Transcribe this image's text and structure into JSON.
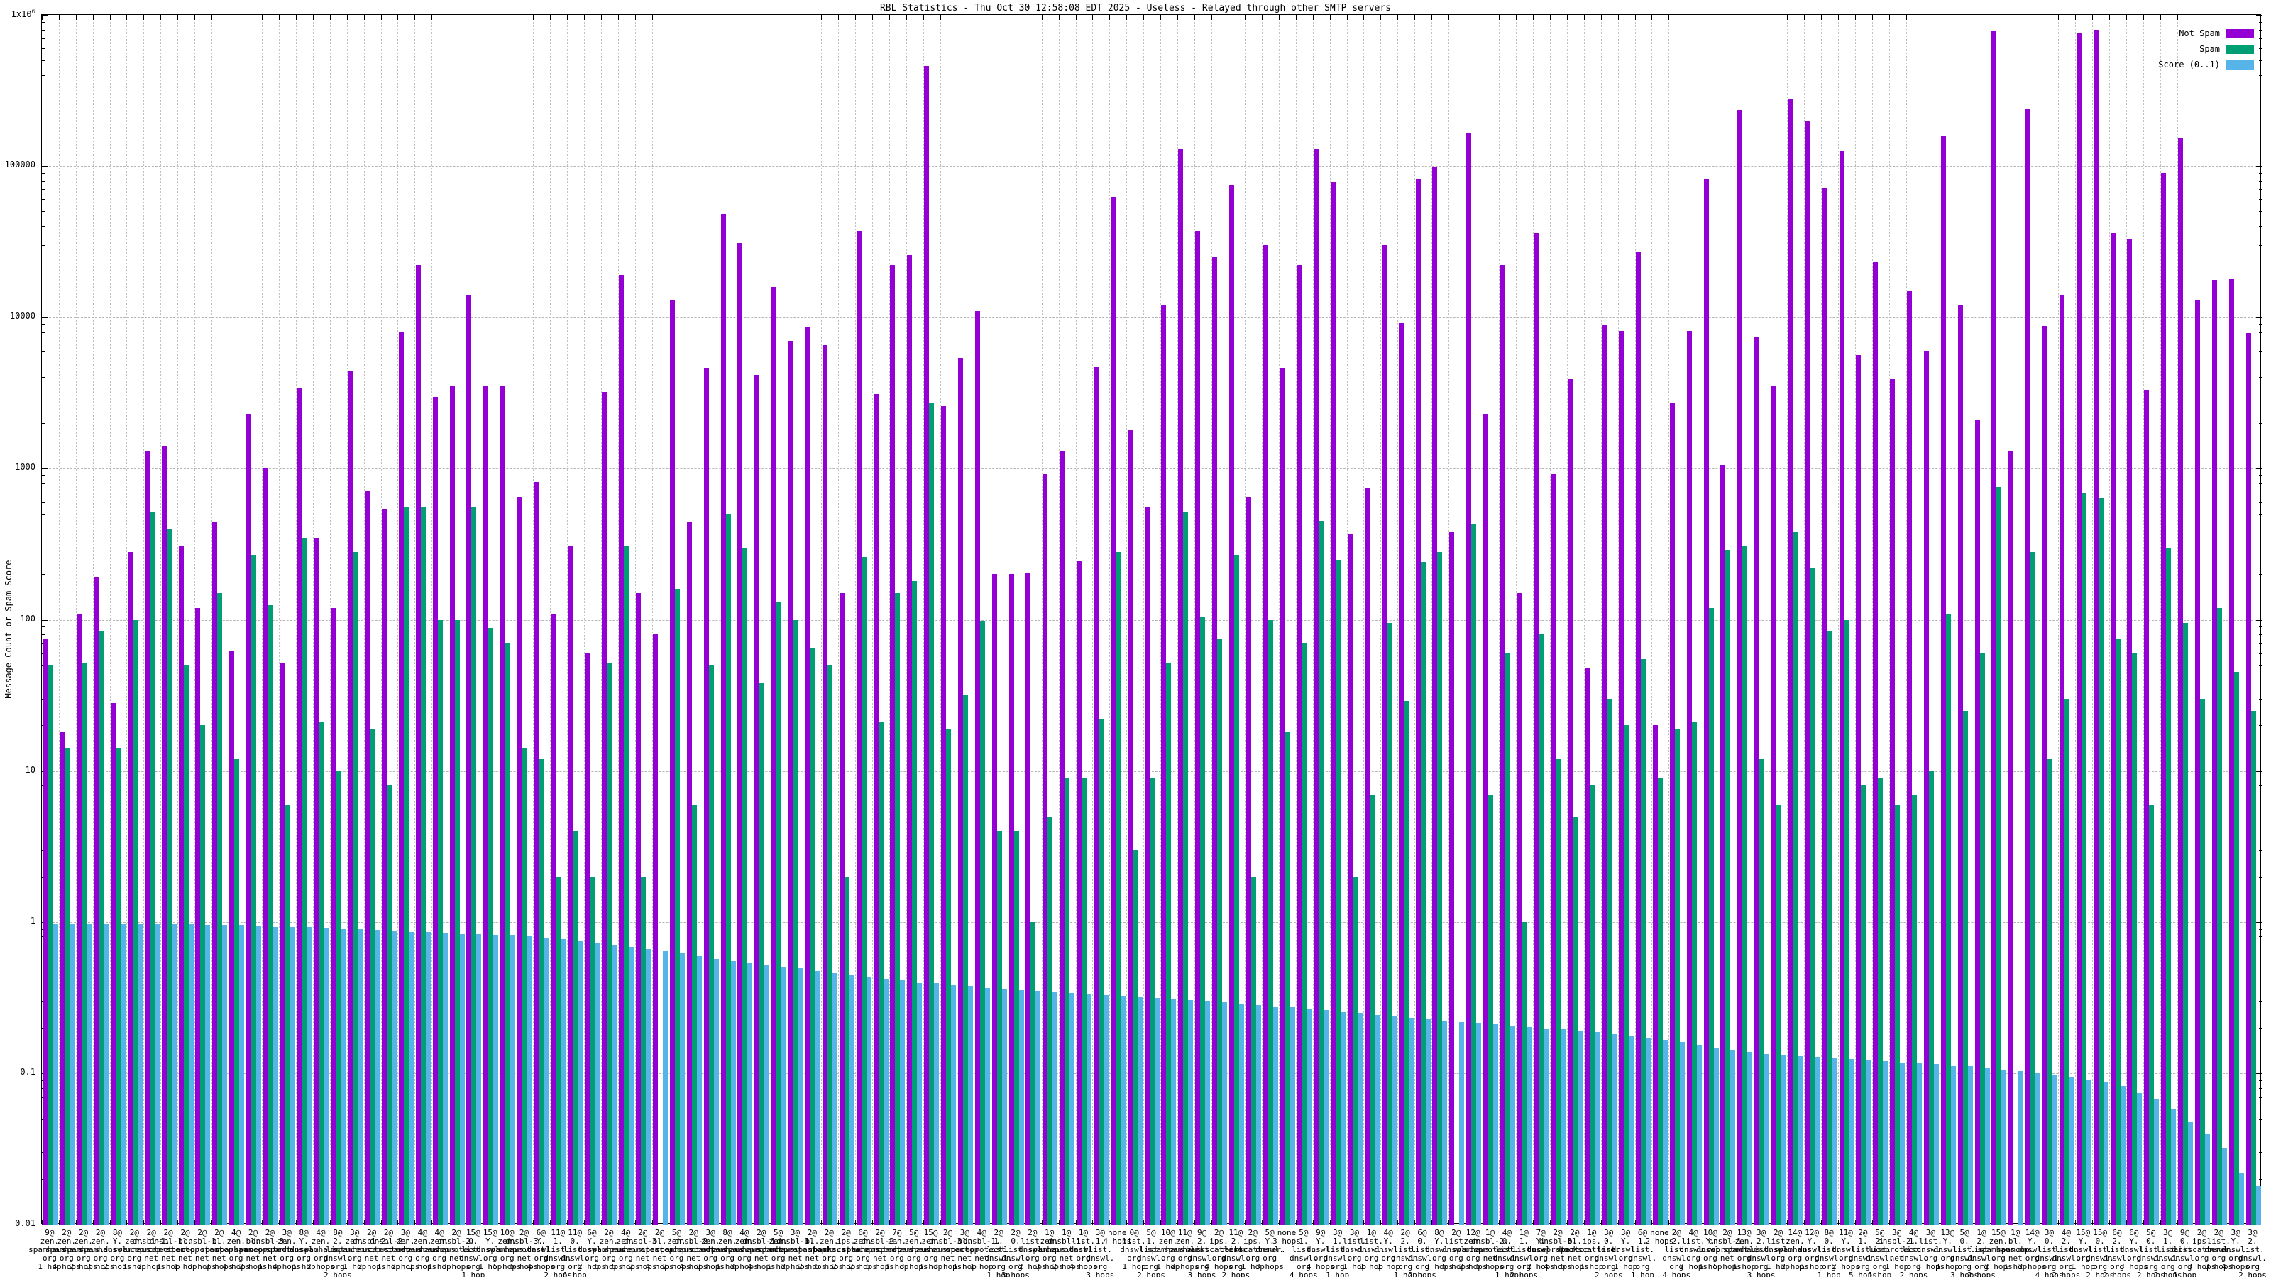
{
  "title": "RBL Statistics - Thu Oct 30 12:58:08 EDT 2025 - Useless - Relayed through other SMTP servers",
  "axes": {
    "y_label": "Message Count or Spam Score",
    "y_scale": "log",
    "y_ticks": [
      "1x10^6",
      "100000",
      "10000",
      "1000",
      "100",
      "10",
      "1",
      "0.1",
      "0.01"
    ],
    "y_min": 0.01,
    "y_max": 1000000
  },
  "legend": {
    "position": "top-right",
    "entries": [
      {
        "label": "Not Spam",
        "color": "#9400D3"
      },
      {
        "label": "Spam",
        "color": "#009E73"
      },
      {
        "label": "Score (0..1)",
        "color": "#56B4E9"
      }
    ]
  },
  "chart_data": {
    "type": "bar",
    "title": "RBL Statistics - Thu Oct 30 12:58:08 EDT 2025 - Useless - Relayed through other SMTP servers",
    "xlabel": "",
    "ylabel": "Message Count or Spam Score",
    "y_scale": "log",
    "ylim": [
      0.01,
      1000000
    ],
    "grid": true,
    "legend_position": "top-right",
    "categories": [
      "9@zen.spamhaus.org 1 hop",
      "2@zen.spamhaus.org 4 hops",
      "2@zen.spamhaus.org 2 hops",
      "2@zen.spamhaus.org 3 hops",
      "8@Y.dnswl.org 2 hops",
      "2@zen.spamhaus.org 1 hop",
      "2@dnsbl-1.uceprotect.net 2 hops",
      "2@dnsbl-1.uceprotect.net 1 hop",
      "2@bl.spamcop.net 1 hop",
      "2@dnsbl-1.uceprotect.net 3 hops",
      "2@bl.spamcop.net 3 hops",
      "4@zen.spamhaus.org 4 hops",
      "2@bl.spamcop.net 2 hops",
      "2@dnsbl-3.uceprotect.net 1 hop",
      "3@zen.spamhaus.org 4 hops",
      "8@Y.dnswl.org 1 hop",
      "4@zen.spamhaus.org 2 hops",
      "8@2.list.dnswl.org 2 hops",
      "3@zen.spamhaus.org 1 hop",
      "2@dnsbl-2.uceprotect.net 2 hops",
      "2@dnsbl-2.uceprotect.net 1 hop",
      "3@zen.spamhaus.org 2 hops",
      "4@zen.spamhaus.org 3 hops",
      "4@zen.spamhaus.org 1 hop",
      "2@dnsbl-2.uceprotect.net 3 hops",
      "15@0.list.dnswl.org 1 hop",
      "15@Y.dnswl.org 1 hop",
      "10@zen.spamhaus.org 5 hops",
      "2@dnsbl-3.uceprotect.net 5 hops",
      "6@Y.dnswl.org 4 hops",
      "11@1.list.dnswl.org 2 hops",
      "11@0.list.dnswl.org 1 hop",
      "6@Y.dnswl.org 2 hops",
      "2@zen.spamhaus.org 5 hops",
      "4@zen.spamhaus.org 5 hops",
      "2@dnsbl-3.uceprotect.net 2 hops",
      "2@bl.spamcop.net 4 hops",
      "5@zen.spamhaus.org 2 hops",
      "2@dnsbl-2.uceprotect.net 4 hops",
      "3@zen.spamhaus.org 3 hops",
      "8@zen.spamhaus.org 1 hop",
      "4@zen.spamhaus.org 2 hops",
      "2@dnsbl-1.uceprotect.net 4 hops",
      "5@zen.spamhaus.org 1 hop",
      "3@dnsbl-1.uceprotect.net 2 hops",
      "2@bl.spamcop.net 2 hops",
      "2@zen.spamhaus.org 5 hops",
      "2@ips.backscatterer.org 2 hops",
      "6@zen.spamhaus.org 2 hops",
      "2@dnsbl-2.uceprotect.net 5 hops",
      "7@zen.spamhaus.org 1 hop",
      "5@zen.spamhaus.org 3 hops",
      "15@zen.spamhaus.org 1 hop",
      "2@dnsbl-3.uceprotect.net 3 hops",
      "3@bl.spamcop.net 1 hop",
      "4@dnsbl-1.uceprotect.net 1 hop",
      "2@1.list.dnswl.org 1 hop",
      "2@0.list.dnswl.org 3 hops",
      "2@list.dnswl.org 2 hops",
      "1@zen.spamhaus.org 3 hops",
      "1@dnsbl-1.uceprotect.net 2 hops",
      "1@list.dnswl.org 4 hops",
      "3@1.list.dnswl.org 3 hops",
      "none 4 hops",
      "0@list.dnswl.org 1 hop",
      "5@1.list.dnswl.org 2 hops",
      "10@zen.spamhaus.org 1 hop",
      "11@zen.spamhaus.org 2 hops",
      "9@2.list.dnswl.org 3 hops",
      "2@ips.backscatterer.org 4 hops",
      "11@2.list.dnswl.org 2 hops",
      "2@ips.backscatterer.org 1 hop",
      "5@Y.dnswl.org 3 hops",
      "none 3 hops",
      "5@1.list.dnswl.org 4 hops",
      "9@Y.dnswl.org 4 hops",
      "3@1.list.dnswl.org 1 hop",
      "3@list.dnswl.org 1 hop",
      "1@list.dnswl.org 1 hop",
      "4@Y.dnswl.org 1 hop",
      "2@2.list.dnswl.org 1 hop",
      "6@0.list.dnswl.org 2 hops",
      "8@Y.dnswl.org 3 hops",
      "2@list.dnswl.org 5 hops",
      "12@zen.spamhaus.org 2 hops",
      "1@dnsbl-2.uceprotect.net 5 hops",
      "4@0.list.dnswl.org 1 hop",
      "1@1.list.dnswl.org 2 hops",
      "7@Y.dnswl.org 2 hops",
      "2@dnsbl-3.uceprotect.net 4 hops",
      "2@bl.spamcop.net 5 hops",
      "1@ips.backscatterer.org 1 hop",
      "3@0.list.dnswl.org 2 hops",
      "3@Y.dnswl.org 1 hop",
      "6@1.list.dnswl.org 1 hop",
      "none 2 hops",
      "2@2.list.dnswl.org 4 hops",
      "4@list.dnswl.org 2 hops",
      "10@Y.dnswl.org 1 hop",
      "2@dnsbl-1.uceprotect.net 5 hops",
      "13@zen.spamhaus.org 1 hop",
      "3@2.list.dnswl.org 3 hops",
      "2@list.dnswl.org 1 hop",
      "14@zen.spamhaus.org 2 hops",
      "12@Y.dnswl.org 1 hop",
      "8@0.list.dnswl.org 1 hop",
      "11@Y.dnswl.org 2 hops",
      "2@1.list.dnswl.org 5 hops",
      "5@2.list.dnswl.org 1 hop",
      "3@dnsbl-2.uceprotect.net 1 hop",
      "4@1.list.dnswl.org 2 hops",
      "3@list.dnswl.org 3 hops",
      "13@Y.dnswl.org 1 hop",
      "5@0.list.dnswl.org 3 hops",
      "1@2.list.dnswl.org 2 hops",
      "15@zen.spamhaus.org 2 hops",
      "1@bl.spamcop.net 1 hop",
      "14@Y.dnswl.org 2 hops",
      "3@0.list.dnswl.org 4 hops",
      "4@2.list.dnswl.org 2 hops",
      "15@Y.dnswl.org 1 hop",
      "15@0.list.dnswl.org 2 hops",
      "6@2.list.dnswl.org 2 hops",
      "6@Y.dnswl.org 3 hops",
      "5@0.list.dnswl.org 2 hops",
      "3@1.list.dnswl.org 2 hops",
      "9@0.list.dnswl.org 1 hop",
      "2@ips.backscatterer.org 3 hops",
      "2@list.dnswl.org 3 hops",
      "3@Y.dnswl.org 4 hops",
      "3@2.list.dnswl.org 2 hops"
    ],
    "series": [
      {
        "name": "Not Spam",
        "color": "#9400D3",
        "values": [
          75,
          18,
          110,
          190,
          28,
          280,
          1300,
          1400,
          310,
          120,
          440,
          62,
          2300,
          1000,
          52,
          3400,
          350,
          120,
          4400,
          710,
          540,
          8000,
          22000,
          3000,
          3500,
          14000,
          3500,
          3500,
          650,
          810,
          110,
          310,
          60,
          3200,
          19000,
          150,
          80,
          13000,
          440,
          4600,
          48000,
          31000,
          4200,
          16000,
          7000,
          8600,
          6600,
          150,
          37000,
          3100,
          22000,
          26000,
          460000,
          2600,
          5400,
          11000,
          200,
          200,
          205,
          920,
          1300,
          245,
          4700,
          62000,
          1800,
          560,
          12000,
          130000,
          37000,
          25000,
          75000,
          650,
          30000,
          4600,
          22000,
          130000,
          79000,
          370,
          740,
          30000,
          9200,
          82000,
          98000,
          380,
          165000,
          2300,
          22000,
          150,
          36000,
          920,
          3900,
          48,
          8900,
          8100,
          27000,
          20,
          2700,
          8100,
          82000,
          1050,
          235000,
          7400,
          3500,
          280000,
          200000,
          72000,
          125000,
          5600,
          23000,
          3900,
          15000,
          6000,
          160000,
          12000,
          2100,
          780000,
          1300,
          240000,
          8700,
          14000,
          760000,
          800000,
          36000,
          33000,
          3300,
          90000,
          155000,
          13000,
          17500,
          18000,
          7800
        ]
      },
      {
        "name": "Spam",
        "color": "#009E73",
        "values": [
          50,
          14,
          52,
          84,
          14,
          100,
          520,
          400,
          50,
          20,
          150,
          12,
          270,
          125,
          6,
          350,
          21,
          10,
          280,
          19,
          8,
          560,
          560,
          100,
          100,
          560,
          88,
          70,
          14,
          12,
          2,
          4,
          2,
          52,
          310,
          2,
          0,
          160,
          6,
          50,
          500,
          300,
          38,
          130,
          100,
          65,
          50,
          2,
          260,
          21,
          150,
          180,
          2700,
          19,
          32,
          98,
          4,
          4,
          1,
          5,
          9,
          9,
          22,
          280,
          3,
          9,
          52,
          520,
          105,
          75,
          270,
          2,
          100,
          18,
          70,
          450,
          250,
          2,
          7,
          95,
          29,
          240,
          280,
          0,
          430,
          7,
          60,
          1,
          80,
          12,
          5,
          8,
          30,
          20,
          55,
          9,
          19,
          21,
          120,
          290,
          310,
          12,
          6,
          380,
          220,
          85,
          100,
          8,
          9,
          6,
          7,
          10,
          110,
          25,
          60,
          760,
          0,
          280,
          12,
          30,
          690,
          640,
          75,
          60,
          6,
          300,
          95,
          30,
          120,
          45,
          25
        ]
      },
      {
        "name": "Score (0..1)",
        "color": "#56B4E9",
        "values": [
          0.98,
          0.978,
          0.975,
          0.972,
          0.97,
          0.968,
          0.966,
          0.964,
          0.962,
          0.96,
          0.955,
          0.95,
          0.944,
          0.937,
          0.93,
          0.922,
          0.914,
          0.906,
          0.898,
          0.89,
          0.88,
          0.87,
          0.86,
          0.85,
          0.84,
          0.833,
          0.825,
          0.818,
          0.805,
          0.79,
          0.77,
          0.75,
          0.73,
          0.705,
          0.68,
          0.66,
          0.64,
          0.62,
          0.595,
          0.57,
          0.553,
          0.536,
          0.52,
          0.506,
          0.493,
          0.48,
          0.465,
          0.45,
          0.435,
          0.42,
          0.41,
          0.4,
          0.392,
          0.385,
          0.377,
          0.37,
          0.362,
          0.355,
          0.35,
          0.345,
          0.34,
          0.335,
          0.33,
          0.325,
          0.32,
          0.315,
          0.31,
          0.305,
          0.3,
          0.295,
          0.289,
          0.283,
          0.277,
          0.272,
          0.266,
          0.261,
          0.255,
          0.25,
          0.244,
          0.239,
          0.233,
          0.228,
          0.223,
          0.219,
          0.214,
          0.21,
          0.206,
          0.202,
          0.198,
          0.195,
          0.191,
          0.187,
          0.182,
          0.178,
          0.172,
          0.166,
          0.16,
          0.154,
          0.148,
          0.142,
          0.138,
          0.135,
          0.132,
          0.13,
          0.128,
          0.126,
          0.124,
          0.122,
          0.12,
          0.118,
          0.117,
          0.115,
          0.113,
          0.111,
          0.108,
          0.105,
          0.103,
          0.1,
          0.098,
          0.095,
          0.091,
          0.088,
          0.082,
          0.075,
          0.068,
          0.058,
          0.048,
          0.04,
          0.032,
          0.022,
          0.018
        ]
      }
    ]
  }
}
